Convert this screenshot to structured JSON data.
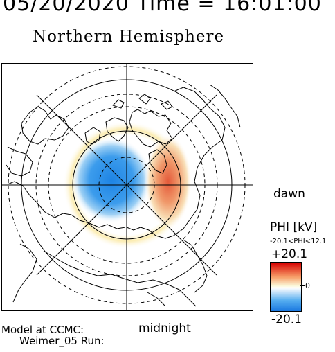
{
  "header": {
    "datetime": "05/20/2020 Time = 16:01:00",
    "title": "Northern Hemisphere"
  },
  "orientation": {
    "dawn_label": "dawn",
    "midnight_label": "midnight"
  },
  "colorbar": {
    "title": "PHI [kV]",
    "range_text": "-20.1<PHI<12.1",
    "max_label": "+20.1",
    "zero_label": "0",
    "min_label": "-20.1",
    "colors": {
      "positive": "#d60000",
      "zero": "#ffffff",
      "negative": "#1a78e0"
    }
  },
  "credits": {
    "line1": "Model at CCMC:",
    "line2": "Weimer_05 Run:"
  }
}
